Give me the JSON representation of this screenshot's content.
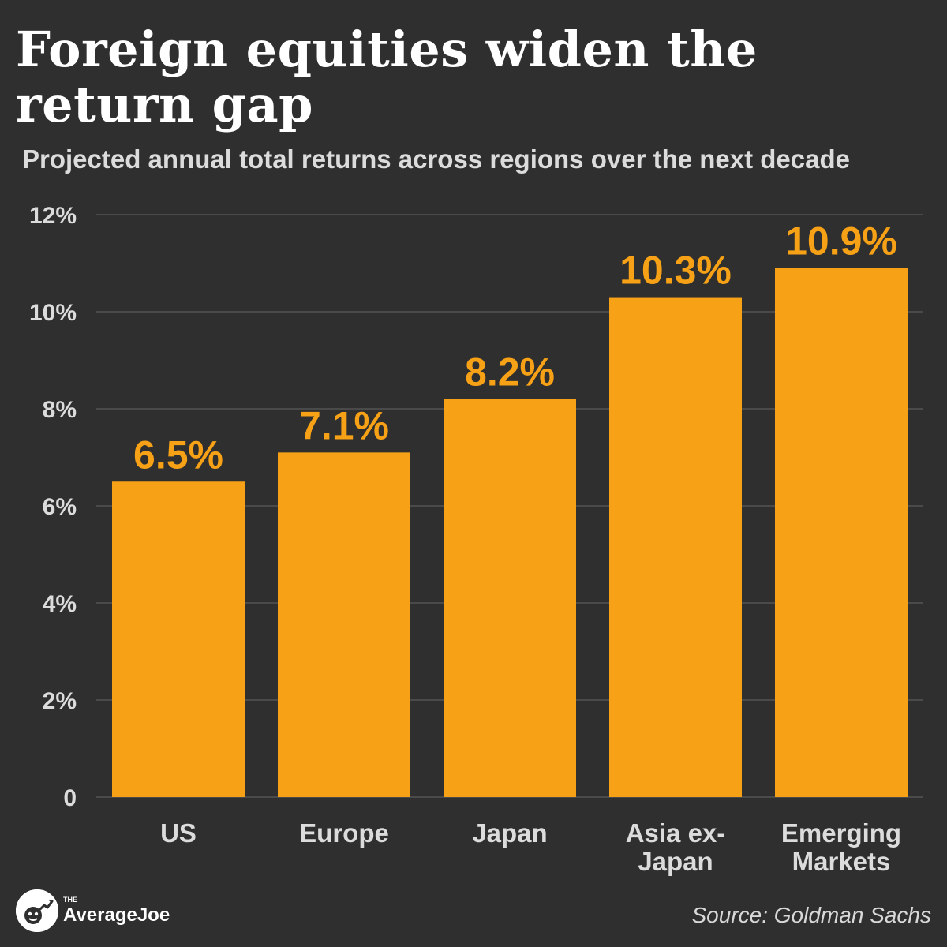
{
  "header": {
    "title": "Foreign equities widen the return gap",
    "subtitle": "Projected annual total returns across regions over the next decade"
  },
  "chart_data": {
    "type": "bar",
    "title": "Foreign equities widen the return gap",
    "subtitle": "Projected annual total returns across regions over the next decade",
    "categories": [
      [
        "US"
      ],
      [
        "Europe"
      ],
      [
        "Japan"
      ],
      [
        "Asia ex-",
        "Japan"
      ],
      [
        "Emerging",
        "Markets"
      ]
    ],
    "values": [
      6.5,
      7.1,
      8.2,
      10.3,
      10.9
    ],
    "value_labels": [
      "6.5%",
      "7.1%",
      "8.2%",
      "10.3%",
      "10.9%"
    ],
    "ylim": [
      0,
      12
    ],
    "yticks": [
      0,
      2,
      4,
      6,
      8,
      10,
      12
    ],
    "ytick_labels": [
      "0",
      "2%",
      "4%",
      "6%",
      "8%",
      "10%",
      "12%"
    ],
    "xlabel": "",
    "ylabel": "",
    "grid": true,
    "bar_color": "#f7a116"
  },
  "colors": {
    "background": "#2f2f2f",
    "bar": "#f7a116",
    "grid": "#4a4a4a",
    "text": "#ffffff",
    "muted_text": "#dcdcdc"
  },
  "footer": {
    "logo_small": "THE",
    "logo_name": "AverageJoe",
    "logo_icon": "average-joe-logo-icon",
    "source": "Source: Goldman Sachs"
  }
}
